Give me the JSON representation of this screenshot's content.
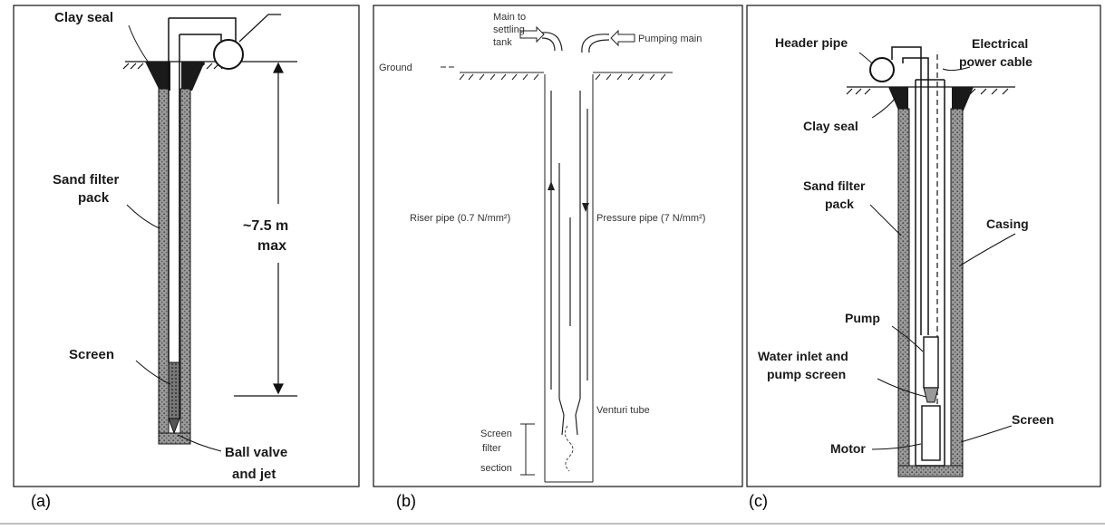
{
  "panels": [
    {
      "caption": "(a)",
      "labels": {
        "clay_seal": "Clay seal",
        "sand_filter_1": "Sand filter",
        "sand_filter_2": "pack",
        "depth_1": "~7.5 m",
        "depth_2": "max",
        "screen": "Screen",
        "ball_valve_1": "Ball valve",
        "ball_valve_2": "and jet"
      }
    },
    {
      "caption": "(b)",
      "labels": {
        "main_settling_1": "Main to",
        "main_settling_2": "settling",
        "main_settling_3": "tank",
        "pumping_main": "Pumping main",
        "ground": "Ground",
        "riser_pipe": "Riser pipe (0.7 N/mm²)",
        "pressure_pipe": "Pressure pipe (7 N/mm²)",
        "venturi_tube": "Venturi tube",
        "screen_filter_1": "Screen",
        "screen_filter_2": "filter",
        "screen_filter_3": "section"
      }
    },
    {
      "caption": "(c)",
      "labels": {
        "header_pipe": "Header pipe",
        "power_cable_1": "Electrical",
        "power_cable_2": "power cable",
        "clay_seal": "Clay seal",
        "sand_filter_1": "Sand filter",
        "sand_filter_2": "pack",
        "casing": "Casing",
        "pump": "Pump",
        "water_inlet_1": "Water inlet and",
        "water_inlet_2": "pump screen",
        "screen": "Screen",
        "motor": "Motor"
      }
    }
  ],
  "colors": {
    "line": "#111111",
    "filter_pack": "#8a8a8a",
    "seal": "#1a1a1a",
    "background": "#ffffff"
  }
}
